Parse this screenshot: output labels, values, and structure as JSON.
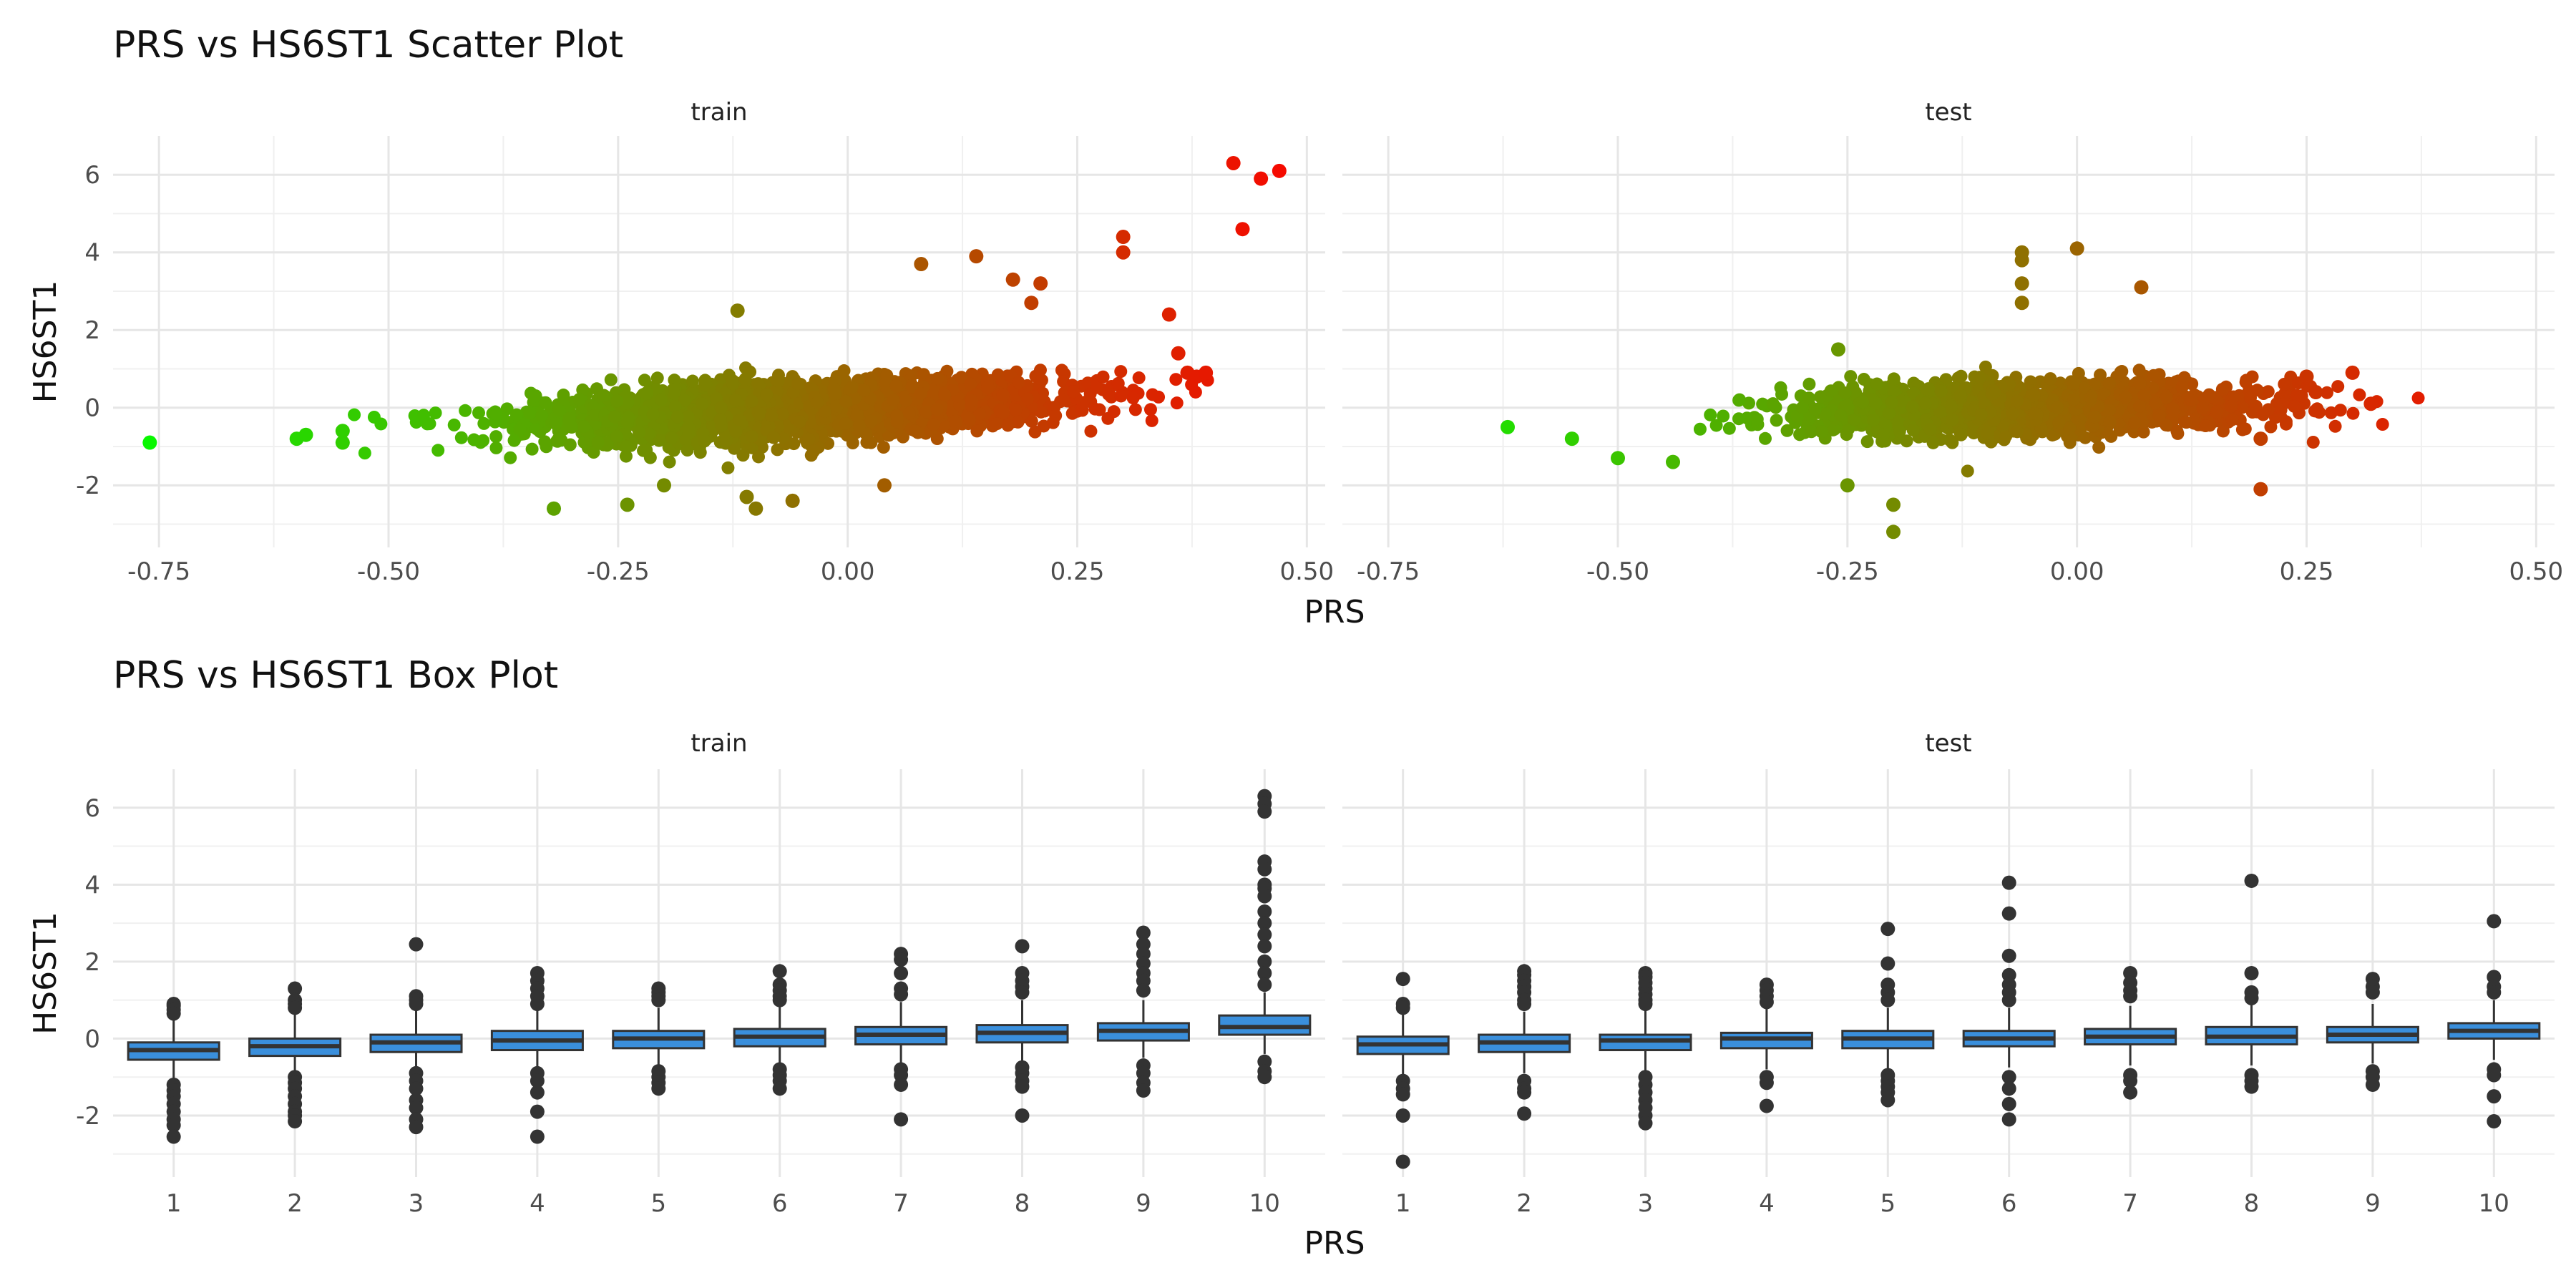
{
  "figure": {
    "scatter_title": "PRS vs HS6ST1 Scatter Plot",
    "box_title": "PRS vs HS6ST1 Box Plot"
  },
  "chart_data": [
    {
      "type": "scatter",
      "title": "PRS vs HS6ST1 Scatter Plot",
      "xlabel": "PRS",
      "ylabel": "HS6ST1",
      "facets": [
        "train",
        "test"
      ],
      "xlim": [
        -0.8,
        0.52
      ],
      "ylim": [
        -3.6,
        7.0
      ],
      "x_ticks": [
        -0.75,
        -0.5,
        -0.25,
        0.0,
        0.25,
        0.5
      ],
      "x_tick_labels": [
        "-0.75",
        "-0.50",
        "-0.25",
        "0.00",
        "0.25",
        "0.50"
      ],
      "y_ticks": [
        -2,
        0,
        2,
        4,
        6
      ],
      "y_tick_labels": [
        "-2",
        "0",
        "2",
        "4",
        "6"
      ],
      "color_scale": {
        "low": "#00ff00",
        "high": "#ff0000",
        "mapped_to": "PRS"
      },
      "grid": true,
      "legend": "none",
      "panels": [
        {
          "facet": "train",
          "trend": {
            "slope": 2.6,
            "intercept": 0.0,
            "x_center": -0.05,
            "x_sd": 0.14,
            "noise_sd": 0.35,
            "approx_points": 2600
          },
          "highlighted_points": [
            {
              "x": -0.76,
              "y": -0.9
            },
            {
              "x": -0.6,
              "y": -0.8
            },
            {
              "x": -0.59,
              "y": -0.7
            },
            {
              "x": -0.55,
              "y": -0.9
            },
            {
              "x": -0.55,
              "y": -0.6
            },
            {
              "x": -0.32,
              "y": -2.6
            },
            {
              "x": -0.24,
              "y": -2.5
            },
            {
              "x": -0.2,
              "y": -2.0
            },
            {
              "x": -0.1,
              "y": -2.6
            },
            {
              "x": -0.11,
              "y": -2.3
            },
            {
              "x": -0.06,
              "y": -2.4
            },
            {
              "x": 0.04,
              "y": -2.0
            },
            {
              "x": -0.12,
              "y": 2.5
            },
            {
              "x": 0.08,
              "y": 3.7
            },
            {
              "x": 0.14,
              "y": 3.9
            },
            {
              "x": 0.18,
              "y": 3.3
            },
            {
              "x": 0.2,
              "y": 2.7
            },
            {
              "x": 0.21,
              "y": 3.2
            },
            {
              "x": 0.3,
              "y": 4.4
            },
            {
              "x": 0.3,
              "y": 4.0
            },
            {
              "x": 0.35,
              "y": 2.4
            },
            {
              "x": 0.36,
              "y": 1.4
            },
            {
              "x": 0.37,
              "y": 0.9
            },
            {
              "x": 0.38,
              "y": 0.8
            },
            {
              "x": 0.39,
              "y": 0.9
            },
            {
              "x": 0.42,
              "y": 6.3
            },
            {
              "x": 0.45,
              "y": 5.9
            },
            {
              "x": 0.47,
              "y": 6.1
            },
            {
              "x": 0.43,
              "y": 4.6
            }
          ]
        },
        {
          "facet": "test",
          "trend": {
            "slope": 1.0,
            "intercept": 0.0,
            "x_center": -0.05,
            "x_sd": 0.12,
            "noise_sd": 0.33,
            "approx_points": 1800
          },
          "highlighted_points": [
            {
              "x": -0.62,
              "y": -0.5
            },
            {
              "x": -0.55,
              "y": -0.8
            },
            {
              "x": -0.5,
              "y": -1.3
            },
            {
              "x": -0.44,
              "y": -1.4
            },
            {
              "x": -0.25,
              "y": -2.0
            },
            {
              "x": -0.2,
              "y": -3.2
            },
            {
              "x": -0.2,
              "y": -2.5
            },
            {
              "x": -0.26,
              "y": 1.5
            },
            {
              "x": -0.06,
              "y": 4.0
            },
            {
              "x": -0.06,
              "y": 3.8
            },
            {
              "x": -0.06,
              "y": 3.2
            },
            {
              "x": -0.06,
              "y": 2.7
            },
            {
              "x": 0.0,
              "y": 4.1
            },
            {
              "x": 0.07,
              "y": 3.1
            },
            {
              "x": 0.2,
              "y": -2.1
            },
            {
              "x": 0.2,
              "y": -0.8
            },
            {
              "x": 0.25,
              "y": 0.8
            },
            {
              "x": 0.3,
              "y": 0.9
            },
            {
              "x": 0.32,
              "y": 0.1
            },
            {
              "x": 0.26,
              "y": 0.4
            }
          ]
        }
      ]
    },
    {
      "type": "box",
      "title": "PRS vs HS6ST1 Box Plot",
      "xlabel": "PRS",
      "ylabel": "HS6ST1",
      "facets": [
        "train",
        "test"
      ],
      "categories": [
        "1",
        "2",
        "3",
        "4",
        "5",
        "6",
        "7",
        "8",
        "9",
        "10"
      ],
      "ylim": [
        -3.6,
        7.0
      ],
      "y_ticks": [
        -2,
        0,
        2,
        4,
        6
      ],
      "y_tick_labels": [
        "-2",
        "0",
        "2",
        "4",
        "6"
      ],
      "box_fill": "#3a8fdc",
      "box_stroke": "#333333",
      "grid": true,
      "legend": "none",
      "panels": [
        {
          "facet": "train",
          "boxes": [
            {
              "q1": -0.55,
              "median": -0.3,
              "q3": -0.1,
              "whisker_low": -1.1,
              "whisker_high": 0.6,
              "outliers": [
                0.9,
                0.85,
                0.75,
                0.65,
                -1.2,
                -1.35,
                -1.5,
                -1.7,
                -1.9,
                -2.1,
                -2.25,
                -2.55
              ]
            },
            {
              "q1": -0.45,
              "median": -0.2,
              "q3": 0.0,
              "whisker_low": -0.95,
              "whisker_high": 0.75,
              "outliers": [
                1.3,
                1.0,
                0.9,
                0.8,
                -1.0,
                -1.15,
                -1.3,
                -1.5,
                -1.7,
                -1.9,
                -2.0,
                -2.15
              ]
            },
            {
              "q1": -0.35,
              "median": -0.1,
              "q3": 0.1,
              "whisker_low": -0.85,
              "whisker_high": 0.8,
              "outliers": [
                2.45,
                1.1,
                1.0,
                0.9,
                -0.9,
                -1.1,
                -1.3,
                -1.6,
                -1.8,
                -2.1,
                -2.3
              ]
            },
            {
              "q1": -0.3,
              "median": -0.05,
              "q3": 0.2,
              "whisker_low": -0.8,
              "whisker_high": 0.85,
              "outliers": [
                1.7,
                1.5,
                1.3,
                1.1,
                0.9,
                -0.9,
                -1.1,
                -1.4,
                -1.9,
                -2.55
              ]
            },
            {
              "q1": -0.25,
              "median": 0.0,
              "q3": 0.2,
              "whisker_low": -0.75,
              "whisker_high": 0.8,
              "outliers": [
                1.3,
                1.2,
                1.1,
                1.0,
                -0.85,
                -1.0,
                -1.15,
                -1.3
              ]
            },
            {
              "q1": -0.2,
              "median": 0.05,
              "q3": 0.25,
              "whisker_low": -0.7,
              "whisker_high": 0.9,
              "outliers": [
                1.75,
                1.4,
                1.25,
                1.1,
                1.0,
                -0.8,
                -0.95,
                -1.1,
                -1.3
              ]
            },
            {
              "q1": -0.15,
              "median": 0.1,
              "q3": 0.3,
              "whisker_low": -0.65,
              "whisker_high": 0.95,
              "outliers": [
                2.2,
                2.05,
                1.7,
                1.3,
                1.15,
                -0.8,
                -0.95,
                -1.2,
                -2.1
              ]
            },
            {
              "q1": -0.1,
              "median": 0.15,
              "q3": 0.35,
              "whisker_low": -0.6,
              "whisker_high": 1.0,
              "outliers": [
                2.4,
                1.7,
                1.5,
                1.35,
                1.2,
                -0.75,
                -0.9,
                -1.1,
                -1.25,
                -2.0
              ]
            },
            {
              "q1": -0.05,
              "median": 0.2,
              "q3": 0.4,
              "whisker_low": -0.5,
              "whisker_high": 1.0,
              "outliers": [
                2.75,
                2.45,
                2.2,
                1.95,
                1.7,
                1.5,
                1.25,
                -0.7,
                -0.9,
                -1.15,
                -1.35
              ]
            },
            {
              "q1": 0.1,
              "median": 0.3,
              "q3": 0.6,
              "whisker_low": -0.4,
              "whisker_high": 1.2,
              "outliers": [
                6.3,
                6.1,
                5.9,
                4.6,
                4.4,
                4.0,
                3.9,
                3.7,
                3.3,
                3.0,
                2.7,
                2.4,
                2.0,
                1.7,
                1.4,
                -0.6,
                -0.85,
                -1.0
              ]
            }
          ]
        },
        {
          "facet": "test",
          "boxes": [
            {
              "q1": -0.4,
              "median": -0.15,
              "q3": 0.05,
              "whisker_low": -0.95,
              "whisker_high": 0.65,
              "outliers": [
                1.55,
                0.9,
                0.8,
                -1.1,
                -1.3,
                -1.45,
                -2.0,
                -3.2
              ]
            },
            {
              "q1": -0.35,
              "median": -0.1,
              "q3": 0.1,
              "whisker_low": -0.9,
              "whisker_high": 0.7,
              "outliers": [
                1.75,
                1.65,
                1.5,
                1.35,
                1.2,
                1.0,
                0.9,
                -1.1,
                -1.3,
                -1.4,
                -1.95
              ]
            },
            {
              "q1": -0.3,
              "median": -0.05,
              "q3": 0.1,
              "whisker_low": -0.85,
              "whisker_high": 0.75,
              "outliers": [
                1.7,
                1.6,
                1.45,
                1.3,
                1.15,
                1.0,
                0.9,
                -1.0,
                -1.2,
                -1.4,
                -1.6,
                -1.8,
                -2.0,
                -2.2
              ]
            },
            {
              "q1": -0.25,
              "median": 0.0,
              "q3": 0.15,
              "whisker_low": -0.8,
              "whisker_high": 0.8,
              "outliers": [
                1.4,
                1.25,
                1.1,
                0.95,
                -1.0,
                -1.15,
                -1.75
              ]
            },
            {
              "q1": -0.25,
              "median": 0.0,
              "q3": 0.2,
              "whisker_low": -0.8,
              "whisker_high": 0.8,
              "outliers": [
                2.85,
                1.95,
                1.4,
                1.2,
                1.0,
                -0.95,
                -1.1,
                -1.25,
                -1.4,
                -1.6
              ]
            },
            {
              "q1": -0.2,
              "median": 0.0,
              "q3": 0.2,
              "whisker_low": -0.75,
              "whisker_high": 0.8,
              "outliers": [
                4.05,
                3.25,
                2.15,
                1.65,
                1.4,
                1.2,
                1.0,
                -1.0,
                -1.3,
                -1.7,
                -2.1
              ]
            },
            {
              "q1": -0.15,
              "median": 0.05,
              "q3": 0.25,
              "whisker_low": -0.7,
              "whisker_high": 0.85,
              "outliers": [
                1.7,
                1.45,
                1.25,
                1.1,
                -0.95,
                -1.1,
                -1.4
              ]
            },
            {
              "q1": -0.15,
              "median": 0.05,
              "q3": 0.3,
              "whisker_low": -0.7,
              "whisker_high": 0.9,
              "outliers": [
                4.1,
                1.7,
                1.2,
                1.05,
                -0.95,
                -1.1,
                -1.25
              ]
            },
            {
              "q1": -0.1,
              "median": 0.1,
              "q3": 0.3,
              "whisker_low": -0.65,
              "whisker_high": 0.9,
              "outliers": [
                1.55,
                1.35,
                1.2,
                -0.85,
                -1.0,
                -1.2
              ]
            },
            {
              "q1": 0.0,
              "median": 0.2,
              "q3": 0.4,
              "whisker_low": -0.55,
              "whisker_high": 1.0,
              "outliers": [
                3.05,
                1.6,
                1.35,
                1.2,
                -0.8,
                -0.95,
                -1.5,
                -2.15
              ]
            }
          ]
        }
      ]
    }
  ]
}
